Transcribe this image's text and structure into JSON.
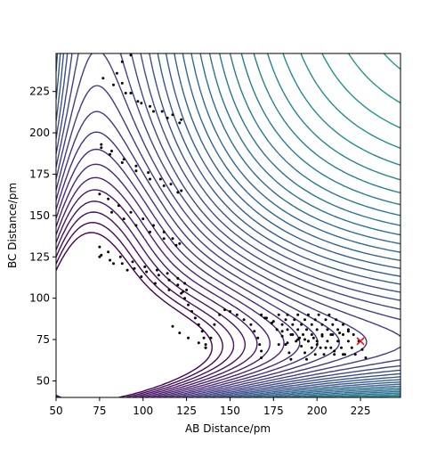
{
  "chart_data": {
    "type": "contour",
    "xlabel": "AB Distance/pm",
    "ylabel": "BC Distance/pm",
    "xlim": [
      50,
      248
    ],
    "ylim": [
      40,
      248
    ],
    "x_ticks": [
      50,
      75,
      100,
      125,
      150,
      175,
      200,
      225
    ],
    "y_ticks": [
      50,
      75,
      100,
      125,
      150,
      175,
      200,
      225
    ],
    "grid": false,
    "legend": "none",
    "colormap": [
      "#440154",
      "#482878",
      "#3e4989",
      "#31688e",
      "#26828e",
      "#1f9e89",
      "#35b779",
      "#6ece58",
      "#b5de2b",
      "#fde725"
    ],
    "contour_surface": "collinear A-B-C potential energy surface (LEPS-type), minimum valley along BC ≈ 74 pm",
    "trajectory_color": "#000000",
    "marker": {
      "shape": "x",
      "color": "#e8000b",
      "x": 225,
      "y": 74
    },
    "trajectory": [
      [
        77,
        233
      ],
      [
        83,
        229
      ],
      [
        90,
        224
      ],
      [
        97,
        219
      ],
      [
        104,
        216
      ],
      [
        111,
        213
      ],
      [
        117,
        211
      ],
      [
        122,
        208
      ],
      [
        121,
        206
      ],
      [
        114,
        209
      ],
      [
        106,
        213
      ],
      [
        99,
        218
      ],
      [
        93,
        224
      ],
      [
        88,
        230
      ],
      [
        85,
        236
      ],
      [
        88,
        243
      ],
      [
        93,
        247
      ],
      [
        76,
        193
      ],
      [
        82,
        189
      ],
      [
        89,
        184
      ],
      [
        96,
        180
      ],
      [
        103,
        176
      ],
      [
        110,
        172
      ],
      [
        116,
        169
      ],
      [
        122,
        165
      ],
      [
        120,
        164
      ],
      [
        112,
        168
      ],
      [
        104,
        172
      ],
      [
        96,
        177
      ],
      [
        88,
        182
      ],
      [
        81,
        187
      ],
      [
        76,
        191
      ],
      [
        75,
        163
      ],
      [
        80,
        160
      ],
      [
        86,
        156
      ],
      [
        93,
        152
      ],
      [
        100,
        148
      ],
      [
        106,
        144
      ],
      [
        112,
        140
      ],
      [
        117,
        136
      ],
      [
        121,
        133
      ],
      [
        119,
        132
      ],
      [
        112,
        136
      ],
      [
        104,
        140
      ],
      [
        96,
        144
      ],
      [
        89,
        148
      ],
      [
        82,
        152
      ],
      [
        75,
        131
      ],
      [
        80,
        128
      ],
      [
        87,
        125
      ],
      [
        94,
        122
      ],
      [
        101,
        119
      ],
      [
        108,
        117
      ],
      [
        114,
        115
      ],
      [
        120,
        112
      ],
      [
        124,
        109
      ],
      [
        125,
        105
      ],
      [
        122,
        103
      ],
      [
        115,
        105
      ],
      [
        107,
        109
      ],
      [
        99,
        113
      ],
      [
        91,
        117
      ],
      [
        83,
        121
      ],
      [
        76,
        126
      ],
      [
        75,
        125
      ],
      [
        81,
        123
      ],
      [
        88,
        121
      ],
      [
        95,
        118
      ],
      [
        102,
        116
      ],
      [
        109,
        114
      ],
      [
        115,
        111
      ],
      [
        120,
        108
      ],
      [
        123,
        104
      ],
      [
        124,
        100
      ],
      [
        126,
        96
      ],
      [
        128,
        92
      ],
      [
        130,
        88
      ],
      [
        132,
        84
      ],
      [
        134,
        80
      ],
      [
        135,
        76
      ],
      [
        136,
        72
      ],
      [
        136,
        70
      ],
      [
        132,
        73
      ],
      [
        126,
        76
      ],
      [
        121,
        79
      ],
      [
        117,
        83
      ],
      [
        136,
        70
      ],
      [
        139,
        76
      ],
      [
        141,
        84
      ],
      [
        144,
        90
      ],
      [
        147,
        93
      ],
      [
        150,
        92
      ],
      [
        154,
        90
      ],
      [
        158,
        87
      ],
      [
        162,
        84
      ],
      [
        164,
        80
      ],
      [
        166,
        76
      ],
      [
        167,
        72
      ],
      [
        168,
        68
      ],
      [
        168,
        64
      ],
      [
        168,
        90
      ],
      [
        171,
        88
      ],
      [
        174,
        85
      ],
      [
        177,
        81
      ],
      [
        180,
        77
      ],
      [
        182,
        72
      ],
      [
        184,
        67
      ],
      [
        185,
        63
      ],
      [
        170,
        88
      ],
      [
        175,
        86
      ],
      [
        180,
        84
      ],
      [
        183,
        81
      ],
      [
        186,
        78
      ],
      [
        189,
        75
      ],
      [
        191,
        71
      ],
      [
        193,
        67
      ],
      [
        194,
        63
      ],
      [
        178,
        90
      ],
      [
        182,
        87
      ],
      [
        186,
        84
      ],
      [
        189,
        81
      ],
      [
        192,
        78
      ],
      [
        195,
        74
      ],
      [
        197,
        70
      ],
      [
        199,
        66
      ],
      [
        183,
        90
      ],
      [
        187,
        87
      ],
      [
        191,
        84
      ],
      [
        194,
        81
      ],
      [
        197,
        78
      ],
      [
        200,
        74
      ],
      [
        202,
        70
      ],
      [
        204,
        66
      ],
      [
        189,
        90
      ],
      [
        193,
        87
      ],
      [
        197,
        84
      ],
      [
        200,
        81
      ],
      [
        203,
        78
      ],
      [
        206,
        74
      ],
      [
        208,
        70
      ],
      [
        210,
        66
      ],
      [
        195,
        90
      ],
      [
        199,
        87
      ],
      [
        203,
        84
      ],
      [
        206,
        81
      ],
      [
        209,
        78
      ],
      [
        212,
        74
      ],
      [
        214,
        70
      ],
      [
        216,
        66
      ],
      [
        201,
        90
      ],
      [
        205,
        87
      ],
      [
        209,
        84
      ],
      [
        212,
        81
      ],
      [
        215,
        78
      ],
      [
        218,
        74
      ],
      [
        220,
        70
      ],
      [
        222,
        66
      ],
      [
        207,
        90
      ],
      [
        211,
        87
      ],
      [
        215,
        84
      ],
      [
        218,
        81
      ],
      [
        221,
        78
      ],
      [
        224,
        74
      ],
      [
        226,
        69
      ],
      [
        228,
        64
      ],
      [
        180,
        80
      ],
      [
        185,
        78
      ],
      [
        190,
        76
      ],
      [
        195,
        74
      ],
      [
        200,
        72
      ],
      [
        205,
        70
      ],
      [
        210,
        68
      ],
      [
        215,
        66
      ],
      [
        178,
        72
      ],
      [
        183,
        73
      ],
      [
        188,
        74
      ],
      [
        193,
        75
      ],
      [
        198,
        76
      ],
      [
        203,
        77
      ],
      [
        208,
        78
      ],
      [
        213,
        79
      ],
      [
        218,
        80
      ]
    ]
  }
}
